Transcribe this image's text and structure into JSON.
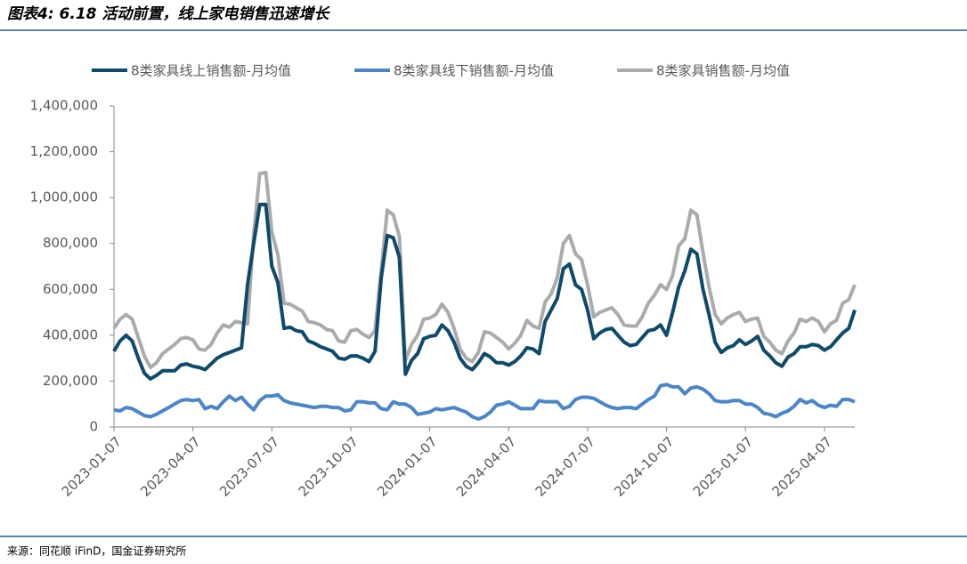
{
  "title": "图表4: 6.18 活动前置，线上家电销售迅速增长",
  "source": "来源：同花顺 iFinD，国金证券研究所",
  "chart_data": {
    "type": "line",
    "categories": [
      "2023-01-07",
      null,
      null,
      null,
      null,
      null,
      null,
      null,
      null,
      null,
      null,
      null,
      null,
      "2023-04-07",
      null,
      null,
      null,
      null,
      null,
      null,
      null,
      null,
      null,
      null,
      null,
      null,
      "2023-07-07",
      null,
      null,
      null,
      null,
      null,
      null,
      null,
      null,
      null,
      null,
      null,
      null,
      "2023-10-07",
      null,
      null,
      null,
      null,
      null,
      null,
      null,
      null,
      null,
      null,
      null,
      null,
      "2024-01-07",
      null,
      null,
      null,
      null,
      null,
      null,
      null,
      null,
      null,
      null,
      null,
      null,
      "2024-04-07",
      null,
      null,
      null,
      null,
      null,
      null,
      null,
      null,
      null,
      null,
      null,
      null,
      "2024-07-07",
      null,
      null,
      null,
      null,
      null,
      null,
      null,
      null,
      null,
      null,
      null,
      null,
      "2024-10-07",
      null,
      null,
      null,
      null,
      null,
      null,
      null,
      null,
      null,
      null,
      null,
      null,
      "2025-01-07",
      null,
      null,
      null,
      null,
      null,
      null,
      null,
      null,
      null,
      null,
      null,
      null,
      "2025-04-07",
      null,
      null,
      null,
      null,
      null
    ],
    "ylim": [
      0,
      1400000
    ],
    "yticks": [
      0,
      {
        "value": 200000,
        "label": "200,000"
      },
      {
        "value": 400000,
        "label": "400,000"
      },
      {
        "value": 600000,
        "label": "600,000"
      },
      {
        "value": 800000,
        "label": "800,000"
      },
      {
        "value": 1000000,
        "label": "1,000,000"
      },
      {
        "value": 1200000,
        "label": "1,200,000"
      },
      {
        "value": 1400000,
        "label": "1,400,000"
      }
    ],
    "grid": false,
    "legend": "top",
    "series": [
      {
        "name": "8类家具线上销售额-月均值",
        "color": "#0d4a6b",
        "values": [
          330000,
          375000,
          400000,
          375000,
          300000,
          235000,
          210000,
          225000,
          245000,
          245000,
          245000,
          270000,
          275000,
          265000,
          260000,
          250000,
          275000,
          300000,
          315000,
          325000,
          335000,
          345000,
          620000,
          800000,
          970000,
          970000,
          700000,
          630000,
          430000,
          435000,
          420000,
          415000,
          375000,
          365000,
          350000,
          340000,
          330000,
          300000,
          295000,
          310000,
          310000,
          300000,
          285000,
          330000,
          650000,
          835000,
          825000,
          740000,
          230000,
          290000,
          320000,
          385000,
          395000,
          400000,
          445000,
          420000,
          370000,
          300000,
          265000,
          250000,
          280000,
          320000,
          305000,
          280000,
          280000,
          270000,
          285000,
          310000,
          345000,
          340000,
          320000,
          460000,
          510000,
          560000,
          690000,
          710000,
          620000,
          600000,
          510000,
          385000,
          410000,
          425000,
          430000,
          400000,
          370000,
          355000,
          360000,
          390000,
          420000,
          425000,
          445000,
          400000,
          500000,
          610000,
          680000,
          775000,
          755000,
          600000,
          490000,
          370000,
          325000,
          345000,
          355000,
          380000,
          360000,
          375000,
          395000,
          335000,
          310000,
          280000,
          265000,
          305000,
          320000,
          350000,
          350000,
          360000,
          355000,
          335000,
          350000,
          380000,
          410000,
          430000,
          510000
        ]
      },
      {
        "name": "8类家具线下销售额-月均值",
        "color": "#4a86c8",
        "values": [
          75000,
          70000,
          85000,
          80000,
          65000,
          50000,
          45000,
          55000,
          70000,
          85000,
          100000,
          115000,
          120000,
          115000,
          120000,
          80000,
          90000,
          80000,
          110000,
          135000,
          115000,
          130000,
          100000,
          75000,
          115000,
          135000,
          135000,
          140000,
          115000,
          105000,
          100000,
          95000,
          90000,
          85000,
          90000,
          90000,
          85000,
          85000,
          70000,
          75000,
          110000,
          110000,
          105000,
          105000,
          80000,
          75000,
          110000,
          100000,
          100000,
          85000,
          55000,
          60000,
          65000,
          80000,
          75000,
          80000,
          85000,
          75000,
          65000,
          45000,
          35000,
          45000,
          65000,
          95000,
          100000,
          110000,
          95000,
          80000,
          80000,
          80000,
          115000,
          110000,
          110000,
          110000,
          80000,
          90000,
          120000,
          130000,
          130000,
          125000,
          110000,
          95000,
          85000,
          80000,
          85000,
          85000,
          80000,
          100000,
          120000,
          135000,
          180000,
          185000,
          175000,
          175000,
          145000,
          170000,
          175000,
          165000,
          145000,
          115000,
          110000,
          110000,
          115000,
          115000,
          100000,
          100000,
          85000,
          60000,
          55000,
          45000,
          60000,
          70000,
          90000,
          120000,
          105000,
          115000,
          95000,
          85000,
          95000,
          90000,
          120000,
          120000,
          110000
        ]
      },
      {
        "name": "8类家具销售额-月均值",
        "color": "#ababab",
        "values": [
          430000,
          470000,
          490000,
          470000,
          390000,
          310000,
          260000,
          280000,
          320000,
          340000,
          360000,
          385000,
          390000,
          380000,
          340000,
          335000,
          360000,
          410000,
          445000,
          435000,
          460000,
          455000,
          450000,
          840000,
          1105000,
          1110000,
          850000,
          750000,
          540000,
          535000,
          520000,
          505000,
          460000,
          455000,
          445000,
          425000,
          420000,
          375000,
          370000,
          420000,
          425000,
          405000,
          390000,
          420000,
          680000,
          945000,
          925000,
          830000,
          290000,
          360000,
          400000,
          470000,
          475000,
          490000,
          535000,
          500000,
          430000,
          340000,
          300000,
          285000,
          325000,
          415000,
          410000,
          390000,
          370000,
          340000,
          365000,
          400000,
          465000,
          440000,
          430000,
          545000,
          580000,
          650000,
          800000,
          835000,
          755000,
          730000,
          620000,
          480000,
          500000,
          510000,
          520000,
          490000,
          445000,
          440000,
          440000,
          480000,
          540000,
          575000,
          620000,
          600000,
          660000,
          790000,
          820000,
          945000,
          925000,
          760000,
          610000,
          490000,
          450000,
          475000,
          490000,
          500000,
          460000,
          470000,
          475000,
          395000,
          370000,
          335000,
          320000,
          375000,
          410000,
          470000,
          460000,
          475000,
          460000,
          415000,
          450000,
          465000,
          540000,
          555000,
          620000
        ]
      }
    ]
  }
}
